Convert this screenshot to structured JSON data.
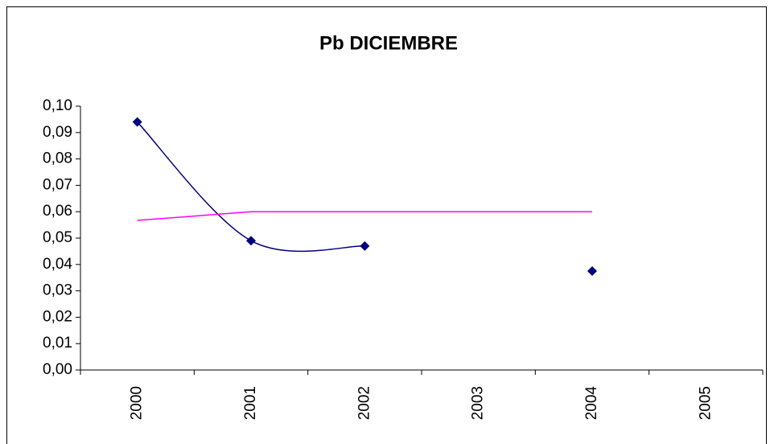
{
  "chart_data": {
    "type": "line",
    "title": "Pb DICIEMBRE",
    "categories": [
      "2000",
      "2001",
      "2002",
      "2003",
      "2004",
      "2005"
    ],
    "series": [
      {
        "color": "#000080",
        "values": [
          0.094,
          0.049,
          0.047,
          null,
          0.0375,
          null
        ],
        "markers": true,
        "smooth": true
      },
      {
        "color": "#ff00ff",
        "values": [
          0.0567,
          0.06,
          0.06,
          0.06,
          0.06,
          null
        ],
        "markers": false,
        "smooth": false
      }
    ],
    "ylim": [
      0,
      0.1
    ],
    "yticks": [
      {
        "value": 0,
        "label": "0,00"
      },
      {
        "value": 0.01,
        "label": "0,01"
      },
      {
        "value": 0.02,
        "label": "0,02"
      },
      {
        "value": 0.03,
        "label": "0,03"
      },
      {
        "value": 0.04,
        "label": "0,04"
      },
      {
        "value": 0.05,
        "label": "0,05"
      },
      {
        "value": 0.06,
        "label": "0,06"
      },
      {
        "value": 0.07,
        "label": "0,07"
      },
      {
        "value": 0.08,
        "label": "0,08"
      },
      {
        "value": 0.09,
        "label": "0,09"
      },
      {
        "value": 0.1,
        "label": "0,10"
      }
    ],
    "grid": false
  }
}
